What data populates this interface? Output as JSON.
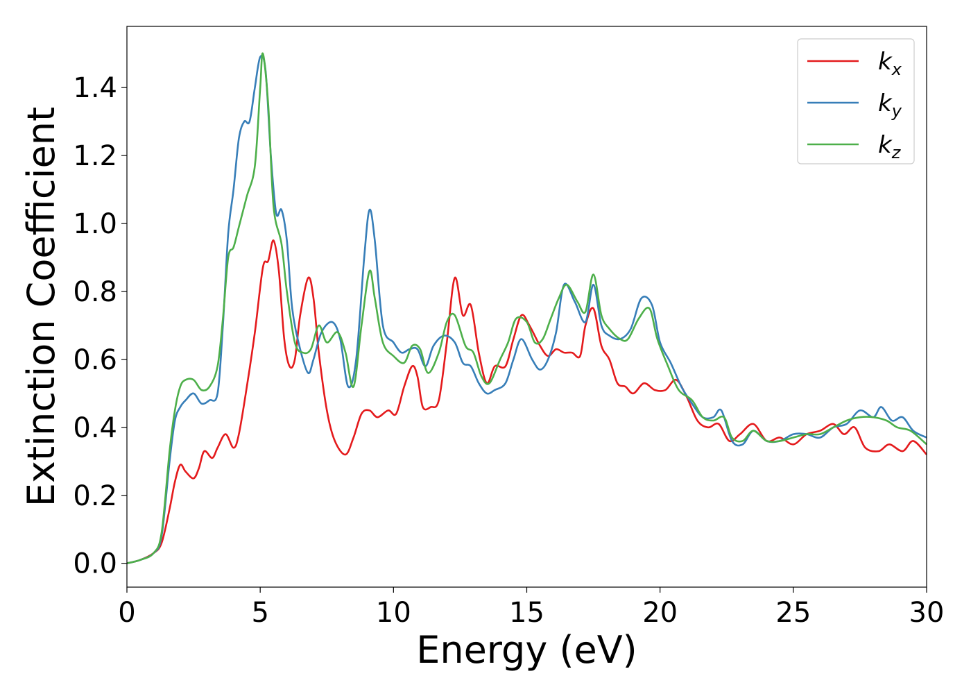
{
  "chart_data": {
    "type": "line",
    "xlabel": "Energy (eV)",
    "ylabel": "Extinction Coefficient",
    "xlim": [
      0,
      30
    ],
    "ylim": [
      -0.07,
      1.58
    ],
    "x_ticks": [
      "0",
      "5",
      "10",
      "15",
      "20",
      "25",
      "30"
    ],
    "y_ticks": [
      "0.0",
      "0.2",
      "0.4",
      "0.6",
      "0.8",
      "1.0",
      "1.2",
      "1.4"
    ],
    "grid": false,
    "legend_position": "top-right",
    "series": [
      {
        "name": "k",
        "subscript": "x",
        "color": "#e41a1c",
        "points": [
          [
            0,
            0
          ],
          [
            0.5,
            0.01
          ],
          [
            1.0,
            0.03
          ],
          [
            1.3,
            0.06
          ],
          [
            1.6,
            0.16
          ],
          [
            1.8,
            0.24
          ],
          [
            2.0,
            0.29
          ],
          [
            2.2,
            0.27
          ],
          [
            2.5,
            0.25
          ],
          [
            2.7,
            0.28
          ],
          [
            2.9,
            0.33
          ],
          [
            3.2,
            0.31
          ],
          [
            3.4,
            0.34
          ],
          [
            3.7,
            0.38
          ],
          [
            4.0,
            0.34
          ],
          [
            4.2,
            0.38
          ],
          [
            4.5,
            0.52
          ],
          [
            4.8,
            0.68
          ],
          [
            5.1,
            0.87
          ],
          [
            5.3,
            0.89
          ],
          [
            5.5,
            0.95
          ],
          [
            5.7,
            0.86
          ],
          [
            5.9,
            0.66
          ],
          [
            6.1,
            0.58
          ],
          [
            6.3,
            0.6
          ],
          [
            6.5,
            0.73
          ],
          [
            6.8,
            0.84
          ],
          [
            7.0,
            0.78
          ],
          [
            7.2,
            0.62
          ],
          [
            7.5,
            0.45
          ],
          [
            7.8,
            0.36
          ],
          [
            8.2,
            0.32
          ],
          [
            8.5,
            0.37
          ],
          [
            8.8,
            0.44
          ],
          [
            9.1,
            0.45
          ],
          [
            9.4,
            0.43
          ],
          [
            9.8,
            0.45
          ],
          [
            10.1,
            0.44
          ],
          [
            10.4,
            0.52
          ],
          [
            10.7,
            0.58
          ],
          [
            10.9,
            0.55
          ],
          [
            11.1,
            0.46
          ],
          [
            11.4,
            0.46
          ],
          [
            11.7,
            0.48
          ],
          [
            12.0,
            0.65
          ],
          [
            12.3,
            0.84
          ],
          [
            12.6,
            0.73
          ],
          [
            12.9,
            0.76
          ],
          [
            13.2,
            0.62
          ],
          [
            13.5,
            0.53
          ],
          [
            13.8,
            0.58
          ],
          [
            14.2,
            0.58
          ],
          [
            14.5,
            0.66
          ],
          [
            14.8,
            0.73
          ],
          [
            15.1,
            0.7
          ],
          [
            15.5,
            0.64
          ],
          [
            15.8,
            0.61
          ],
          [
            16.1,
            0.63
          ],
          [
            16.4,
            0.62
          ],
          [
            16.7,
            0.62
          ],
          [
            17.0,
            0.61
          ],
          [
            17.2,
            0.7
          ],
          [
            17.5,
            0.75
          ],
          [
            17.8,
            0.64
          ],
          [
            18.1,
            0.6
          ],
          [
            18.4,
            0.53
          ],
          [
            18.7,
            0.52
          ],
          [
            19.0,
            0.5
          ],
          [
            19.4,
            0.53
          ],
          [
            19.8,
            0.51
          ],
          [
            20.2,
            0.51
          ],
          [
            20.6,
            0.54
          ],
          [
            21.0,
            0.49
          ],
          [
            21.4,
            0.42
          ],
          [
            21.8,
            0.4
          ],
          [
            22.2,
            0.41
          ],
          [
            22.6,
            0.36
          ],
          [
            23.0,
            0.38
          ],
          [
            23.5,
            0.41
          ],
          [
            24.0,
            0.36
          ],
          [
            24.5,
            0.37
          ],
          [
            25.0,
            0.35
          ],
          [
            25.5,
            0.38
          ],
          [
            26.0,
            0.39
          ],
          [
            26.5,
            0.41
          ],
          [
            26.9,
            0.38
          ],
          [
            27.3,
            0.4
          ],
          [
            27.7,
            0.34
          ],
          [
            28.2,
            0.33
          ],
          [
            28.6,
            0.35
          ],
          [
            29.1,
            0.33
          ],
          [
            29.5,
            0.36
          ],
          [
            30.0,
            0.32
          ]
        ]
      },
      {
        "name": "k",
        "subscript": "y",
        "color": "#377eb8",
        "points": [
          [
            0,
            0
          ],
          [
            0.5,
            0.01
          ],
          [
            1.0,
            0.03
          ],
          [
            1.3,
            0.08
          ],
          [
            1.6,
            0.3
          ],
          [
            1.8,
            0.42
          ],
          [
            2.0,
            0.46
          ],
          [
            2.2,
            0.48
          ],
          [
            2.5,
            0.5
          ],
          [
            2.8,
            0.47
          ],
          [
            3.1,
            0.48
          ],
          [
            3.4,
            0.5
          ],
          [
            3.6,
            0.7
          ],
          [
            3.8,
            0.97
          ],
          [
            4.0,
            1.1
          ],
          [
            4.2,
            1.25
          ],
          [
            4.4,
            1.3
          ],
          [
            4.6,
            1.3
          ],
          [
            4.8,
            1.4
          ],
          [
            5.0,
            1.49
          ],
          [
            5.2,
            1.45
          ],
          [
            5.4,
            1.2
          ],
          [
            5.6,
            1.03
          ],
          [
            5.8,
            1.04
          ],
          [
            6.0,
            0.95
          ],
          [
            6.2,
            0.75
          ],
          [
            6.5,
            0.63
          ],
          [
            6.8,
            0.56
          ],
          [
            7.0,
            0.6
          ],
          [
            7.3,
            0.68
          ],
          [
            7.7,
            0.71
          ],
          [
            8.0,
            0.66
          ],
          [
            8.3,
            0.52
          ],
          [
            8.6,
            0.6
          ],
          [
            8.9,
            0.9
          ],
          [
            9.1,
            1.04
          ],
          [
            9.3,
            0.95
          ],
          [
            9.6,
            0.7
          ],
          [
            10.0,
            0.65
          ],
          [
            10.3,
            0.62
          ],
          [
            10.6,
            0.63
          ],
          [
            10.9,
            0.63
          ],
          [
            11.2,
            0.58
          ],
          [
            11.5,
            0.64
          ],
          [
            11.9,
            0.67
          ],
          [
            12.3,
            0.65
          ],
          [
            12.6,
            0.59
          ],
          [
            12.9,
            0.58
          ],
          [
            13.2,
            0.53
          ],
          [
            13.5,
            0.5
          ],
          [
            13.8,
            0.51
          ],
          [
            14.2,
            0.53
          ],
          [
            14.5,
            0.6
          ],
          [
            14.8,
            0.66
          ],
          [
            15.2,
            0.6
          ],
          [
            15.5,
            0.57
          ],
          [
            15.8,
            0.6
          ],
          [
            16.1,
            0.68
          ],
          [
            16.4,
            0.82
          ],
          [
            16.8,
            0.77
          ],
          [
            17.2,
            0.71
          ],
          [
            17.5,
            0.82
          ],
          [
            17.8,
            0.7
          ],
          [
            18.1,
            0.67
          ],
          [
            18.5,
            0.66
          ],
          [
            18.9,
            0.69
          ],
          [
            19.3,
            0.78
          ],
          [
            19.7,
            0.76
          ],
          [
            20.0,
            0.65
          ],
          [
            20.4,
            0.59
          ],
          [
            20.8,
            0.52
          ],
          [
            21.2,
            0.47
          ],
          [
            21.6,
            0.43
          ],
          [
            22.0,
            0.43
          ],
          [
            22.3,
            0.45
          ],
          [
            22.7,
            0.36
          ],
          [
            23.1,
            0.35
          ],
          [
            23.5,
            0.39
          ],
          [
            24.0,
            0.36
          ],
          [
            24.5,
            0.36
          ],
          [
            25.0,
            0.38
          ],
          [
            25.5,
            0.38
          ],
          [
            26.0,
            0.37
          ],
          [
            26.5,
            0.4
          ],
          [
            27.0,
            0.41
          ],
          [
            27.5,
            0.45
          ],
          [
            28.0,
            0.43
          ],
          [
            28.3,
            0.46
          ],
          [
            28.7,
            0.42
          ],
          [
            29.1,
            0.43
          ],
          [
            29.5,
            0.39
          ],
          [
            30.0,
            0.37
          ]
        ]
      },
      {
        "name": "k",
        "subscript": "z",
        "color": "#4daf4a",
        "points": [
          [
            0,
            0
          ],
          [
            0.5,
            0.01
          ],
          [
            1.0,
            0.03
          ],
          [
            1.3,
            0.09
          ],
          [
            1.6,
            0.33
          ],
          [
            1.8,
            0.45
          ],
          [
            2.0,
            0.52
          ],
          [
            2.2,
            0.54
          ],
          [
            2.5,
            0.54
          ],
          [
            2.8,
            0.51
          ],
          [
            3.1,
            0.52
          ],
          [
            3.4,
            0.58
          ],
          [
            3.6,
            0.72
          ],
          [
            3.8,
            0.9
          ],
          [
            4.0,
            0.93
          ],
          [
            4.2,
            0.99
          ],
          [
            4.5,
            1.08
          ],
          [
            4.8,
            1.17
          ],
          [
            5.0,
            1.4
          ],
          [
            5.1,
            1.5
          ],
          [
            5.3,
            1.35
          ],
          [
            5.5,
            1.05
          ],
          [
            5.8,
            0.94
          ],
          [
            6.0,
            0.8
          ],
          [
            6.3,
            0.65
          ],
          [
            6.6,
            0.62
          ],
          [
            6.9,
            0.63
          ],
          [
            7.2,
            0.7
          ],
          [
            7.5,
            0.65
          ],
          [
            7.9,
            0.68
          ],
          [
            8.2,
            0.62
          ],
          [
            8.5,
            0.52
          ],
          [
            8.8,
            0.7
          ],
          [
            9.1,
            0.86
          ],
          [
            9.3,
            0.78
          ],
          [
            9.6,
            0.65
          ],
          [
            10.0,
            0.61
          ],
          [
            10.4,
            0.59
          ],
          [
            10.7,
            0.64
          ],
          [
            11.0,
            0.63
          ],
          [
            11.3,
            0.56
          ],
          [
            11.7,
            0.62
          ],
          [
            12.0,
            0.71
          ],
          [
            12.3,
            0.73
          ],
          [
            12.7,
            0.64
          ],
          [
            13.0,
            0.62
          ],
          [
            13.3,
            0.55
          ],
          [
            13.6,
            0.53
          ],
          [
            14.0,
            0.6
          ],
          [
            14.3,
            0.65
          ],
          [
            14.6,
            0.72
          ],
          [
            15.0,
            0.71
          ],
          [
            15.3,
            0.65
          ],
          [
            15.6,
            0.66
          ],
          [
            15.9,
            0.72
          ],
          [
            16.2,
            0.78
          ],
          [
            16.5,
            0.82
          ],
          [
            16.9,
            0.77
          ],
          [
            17.2,
            0.74
          ],
          [
            17.5,
            0.85
          ],
          [
            17.8,
            0.73
          ],
          [
            18.1,
            0.69
          ],
          [
            18.5,
            0.66
          ],
          [
            18.8,
            0.66
          ],
          [
            19.2,
            0.72
          ],
          [
            19.6,
            0.75
          ],
          [
            19.9,
            0.66
          ],
          [
            20.3,
            0.58
          ],
          [
            20.7,
            0.51
          ],
          [
            21.2,
            0.48
          ],
          [
            21.6,
            0.43
          ],
          [
            22.0,
            0.42
          ],
          [
            22.4,
            0.43
          ],
          [
            22.7,
            0.37
          ],
          [
            23.1,
            0.36
          ],
          [
            23.5,
            0.39
          ],
          [
            24.0,
            0.36
          ],
          [
            24.5,
            0.36
          ],
          [
            25.0,
            0.37
          ],
          [
            25.5,
            0.38
          ],
          [
            26.0,
            0.38
          ],
          [
            26.5,
            0.4
          ],
          [
            27.0,
            0.42
          ],
          [
            27.5,
            0.43
          ],
          [
            28.0,
            0.43
          ],
          [
            28.5,
            0.42
          ],
          [
            28.9,
            0.4
          ],
          [
            29.4,
            0.39
          ],
          [
            30.0,
            0.35
          ]
        ]
      }
    ]
  }
}
